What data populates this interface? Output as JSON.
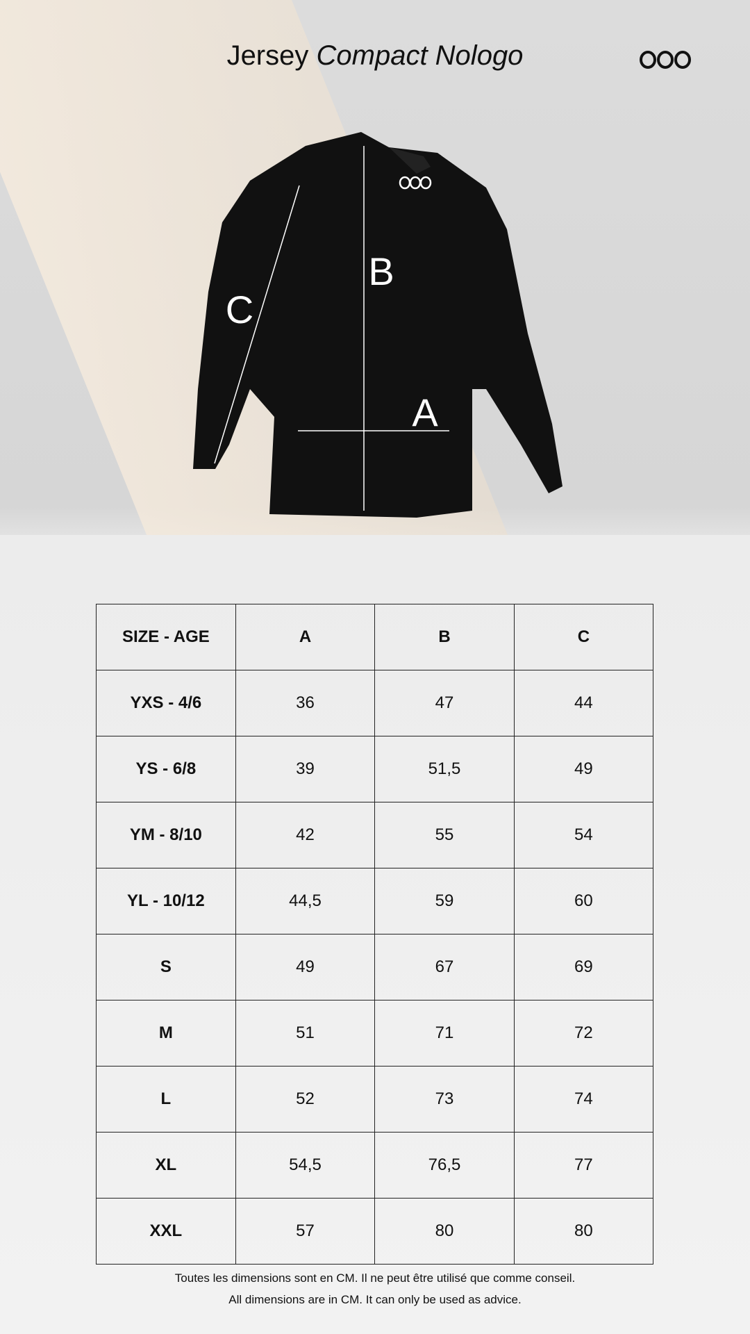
{
  "title": {
    "regular": "Jersey",
    "italic": "Compact Nologo"
  },
  "logo": "ooo",
  "measure_labels": {
    "a": "A",
    "b": "B",
    "c": "C"
  },
  "table": {
    "headers": [
      "SIZE - AGE",
      "A",
      "B",
      "C"
    ],
    "rows": [
      [
        "YXS - 4/6",
        "36",
        "47",
        "44"
      ],
      [
        "YS - 6/8",
        "39",
        "51,5",
        "49"
      ],
      [
        "YM - 8/10",
        "42",
        "55",
        "54"
      ],
      [
        "YL - 10/12",
        "44,5",
        "59",
        "60"
      ],
      [
        "S",
        "49",
        "67",
        "69"
      ],
      [
        "M",
        "51",
        "71",
        "72"
      ],
      [
        "L",
        "52",
        "73",
        "74"
      ],
      [
        "XL",
        "54,5",
        "76,5",
        "77"
      ],
      [
        "XXL",
        "57",
        "80",
        "80"
      ]
    ]
  },
  "footer": {
    "fr": "Toutes les dimensions sont en CM. Il ne peut être utilisé que comme conseil.",
    "en": "All dimensions are in CM. It can only be used as advice."
  }
}
